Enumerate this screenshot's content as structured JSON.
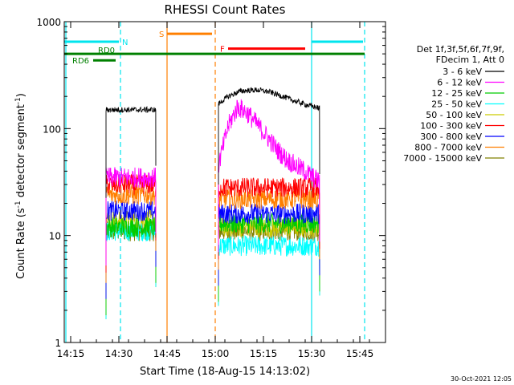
{
  "chart_data": {
    "type": "line",
    "title": "RHESSI Count Rates",
    "xlabel": "Start Time (18-Aug-15 14:13:02)",
    "ylabel": "Count Rate (s",
    "ylabel_sup1": "-1",
    "ylabel_mid": " detector segment",
    "ylabel_sup2": "-1",
    "ylabel_end": ")",
    "x_unit": "minutes since 14:13:02",
    "xlim": [
      0,
      100
    ],
    "ylim": [
      1,
      1000
    ],
    "y_scale": "log",
    "x_ticks": [
      {
        "value": 2,
        "label": "14:15"
      },
      {
        "value": 17,
        "label": "14:30"
      },
      {
        "value": 32,
        "label": "14:45"
      },
      {
        "value": 47,
        "label": "15:00"
      },
      {
        "value": 62,
        "label": "15:15"
      },
      {
        "value": 77,
        "label": "15:30"
      },
      {
        "value": 92,
        "label": "15:45"
      }
    ],
    "y_ticks": [
      {
        "value": 1,
        "label": "1"
      },
      {
        "value": 10,
        "label": "10"
      },
      {
        "value": 100,
        "label": "100"
      },
      {
        "value": 1000,
        "label": "1000"
      }
    ],
    "legend_header": [
      "Det 1f,3f,5f,6f,7f,9f,",
      "FDecim 1, Att 0"
    ],
    "legend_position": "right",
    "segments": [
      [
        13,
        28.5
      ],
      [
        48,
        79.5
      ]
    ],
    "series": [
      {
        "name": "3 - 6 keV",
        "color": "#000000",
        "level1": 150,
        "x": [
          48,
          51,
          55,
          60,
          64,
          68,
          72,
          76,
          79.5
        ],
        "values": [
          170,
          200,
          225,
          230,
          220,
          200,
          180,
          165,
          155
        ]
      },
      {
        "name": "6 - 12 keV",
        "color": "#ff00ff",
        "level1": 35,
        "x": [
          48,
          51,
          54,
          57,
          60,
          63,
          66,
          69,
          72,
          75,
          78,
          79.5
        ],
        "values": [
          45,
          105,
          160,
          140,
          110,
          85,
          65,
          52,
          45,
          40,
          34,
          32
        ]
      },
      {
        "name": "12 - 25 keV",
        "color": "#00cc00",
        "level1": 12,
        "values_level2": 13
      },
      {
        "name": "25 - 50 keV",
        "color": "#00ffff",
        "level1": 11,
        "values_level2": 8
      },
      {
        "name": "50 - 100 keV",
        "color": "#cccc00",
        "level1": 14,
        "values_level2": 12
      },
      {
        "name": "100 - 300 keV",
        "color": "#ff0000",
        "level1": 30,
        "values_level2": 28
      },
      {
        "name": "300 - 800 keV",
        "color": "#0000ff",
        "level1": 17,
        "values_level2": 16
      },
      {
        "name": "800 - 7000 keV",
        "color": "#ff7f00",
        "level1": 24,
        "values_level2": 22
      },
      {
        "name": "7000 - 15000 keV",
        "color": "#808000",
        "level1": 11,
        "values_level2": 11
      }
    ],
    "markers": [
      {
        "x": 0.5,
        "style": "solid",
        "color": "#00e5ee"
      },
      {
        "x": 17.5,
        "style": "dashed",
        "color": "#00e5ee"
      },
      {
        "x": 32,
        "style": "solid",
        "color": "#ff7f00"
      },
      {
        "x": 47,
        "style": "dashed",
        "color": "#ff7f00"
      },
      {
        "x": 77,
        "style": "solid",
        "color": "#00e5ee"
      },
      {
        "x": 93.5,
        "style": "dashed",
        "color": "#00e5ee"
      }
    ],
    "bars": [
      {
        "label": "N",
        "color": "#00e5ee",
        "x1": 0,
        "x2": 17,
        "y": 650,
        "label_x": 18
      },
      {
        "label": "",
        "color": "#00e5ee",
        "x1": 77,
        "x2": 93,
        "y": 650,
        "label_x": 0
      },
      {
        "label": "S",
        "color": "#ff7f00",
        "x1": 32,
        "x2": 46,
        "y": 770,
        "label_x": 29.5
      },
      {
        "label": "F",
        "color": "#ff0000",
        "x1": 51,
        "x2": 75,
        "y": 560,
        "label_x": 48.5
      },
      {
        "label": "RD0",
        "color": "#008000",
        "x1": 0,
        "x2": 93.5,
        "y": 500,
        "label_x": 10.5
      },
      {
        "label": "RD6",
        "color": "#008000",
        "x1": 9,
        "x2": 16,
        "y": 435,
        "label_x": 2.5
      }
    ]
  },
  "footer_date": "30-Oct-2021 12:05"
}
